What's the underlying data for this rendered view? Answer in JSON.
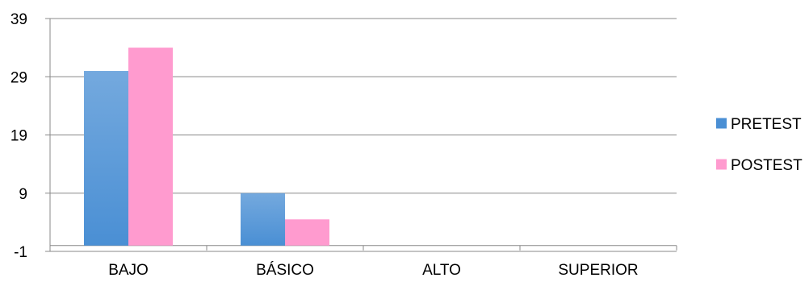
{
  "chart_data": {
    "type": "bar",
    "title": "",
    "xlabel": "",
    "ylabel": "",
    "categories": [
      "BAJO",
      "BÁSICO",
      "ALTO",
      "SUPERIOR"
    ],
    "series": [
      {
        "name": "PRETEST",
        "values": [
          30,
          9,
          0,
          0
        ]
      },
      {
        "name": "POSTEST",
        "values": [
          34,
          4.5,
          0,
          0
        ]
      }
    ],
    "ylim": [
      -1,
      39
    ],
    "yticks": [
      -1,
      9,
      19,
      29,
      39
    ],
    "grid": true,
    "legend_position": "right",
    "colors": {
      "PRETEST": "#4a8fd4",
      "PRETEST_light": "#74a9de",
      "POSTEST": "#ff9bcf",
      "gridline": "#888888",
      "axis": "#888888"
    }
  }
}
